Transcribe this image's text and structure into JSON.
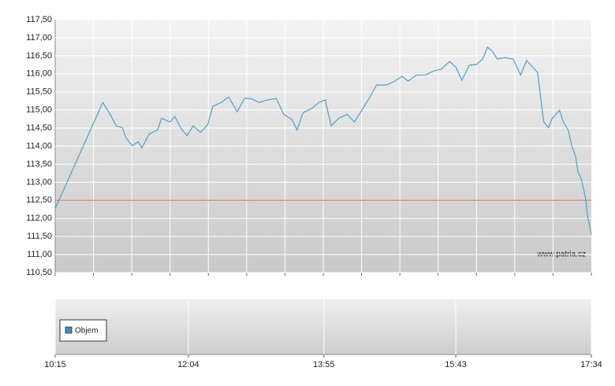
{
  "chart_data": {
    "type": "line",
    "x": [
      615,
      654,
      660,
      665,
      670,
      673,
      678,
      683,
      686,
      692,
      699,
      702,
      709,
      713,
      718,
      723,
      728,
      734,
      740,
      744,
      751,
      757,
      764,
      770,
      775,
      782,
      789,
      796,
      802,
      809,
      813,
      818,
      825,
      831,
      836,
      841,
      847,
      854,
      860,
      866,
      872,
      878,
      886,
      893,
      899,
      904,
      911,
      918,
      925,
      931,
      938,
      943,
      948,
      954,
      960,
      965,
      969,
      973,
      977,
      983,
      990,
      996,
      1001,
      1006,
      1010,
      1013,
      1015,
      1019,
      1022,
      1028,
      1031,
      1035,
      1038,
      1041,
      1043,
      1046,
      1049,
      1051,
      1054
    ],
    "values": [
      112.27,
      115.21,
      114.88,
      114.56,
      114.51,
      114.23,
      114.01,
      114.12,
      113.95,
      114.34,
      114.45,
      114.77,
      114.67,
      114.82,
      114.49,
      114.29,
      114.56,
      114.38,
      114.6,
      115.1,
      115.21,
      115.36,
      114.95,
      115.32,
      115.32,
      115.21,
      115.28,
      115.32,
      114.88,
      114.73,
      114.45,
      114.93,
      115.04,
      115.21,
      115.28,
      114.56,
      114.77,
      114.88,
      114.67,
      114.99,
      115.32,
      115.69,
      115.69,
      115.8,
      115.93,
      115.8,
      115.97,
      115.97,
      116.08,
      116.13,
      116.34,
      116.19,
      115.82,
      116.24,
      116.26,
      116.41,
      116.74,
      116.63,
      116.41,
      116.45,
      116.41,
      115.97,
      116.37,
      116.19,
      116.04,
      115.21,
      114.67,
      114.51,
      114.77,
      114.99,
      114.67,
      114.45,
      114.01,
      113.73,
      113.29,
      113.07,
      112.59,
      112.05,
      111.55
    ],
    "color": "#4aa3c8",
    "reference_line": 112.5,
    "reference_color": "#e06666",
    "xlim": [
      615,
      1054
    ],
    "xticks": [
      {
        "value": 615,
        "label": "10:15"
      },
      {
        "value": 724,
        "label": "12:04"
      },
      {
        "value": 835,
        "label": "13:55"
      },
      {
        "value": 943,
        "label": "15:43"
      },
      {
        "value": 1054,
        "label": "17:34"
      }
    ],
    "ylim": [
      110.5,
      117.5
    ],
    "yticks": [
      {
        "value": 110.5,
        "label": "110,50"
      },
      {
        "value": 111,
        "label": "111,00"
      },
      {
        "value": 111.5,
        "label": "111,50"
      },
      {
        "value": 112,
        "label": "112,00"
      },
      {
        "value": 112.5,
        "label": "112,50"
      },
      {
        "value": 113,
        "label": "113,00"
      },
      {
        "value": 113.5,
        "label": "113,50"
      },
      {
        "value": 114,
        "label": "114,00"
      },
      {
        "value": 114.5,
        "label": "114,50"
      },
      {
        "value": 115,
        "label": "115,00"
      },
      {
        "value": 115.5,
        "label": "115,50"
      },
      {
        "value": 116,
        "label": "116,00"
      },
      {
        "value": 116.5,
        "label": "116,50"
      },
      {
        "value": 117,
        "label": "117,00"
      },
      {
        "value": 117.5,
        "label": "117,50"
      }
    ],
    "grid": true,
    "watermark": "www.patria.cz",
    "volume": {
      "name": "Objem",
      "color": "#3b8fc4"
    }
  }
}
